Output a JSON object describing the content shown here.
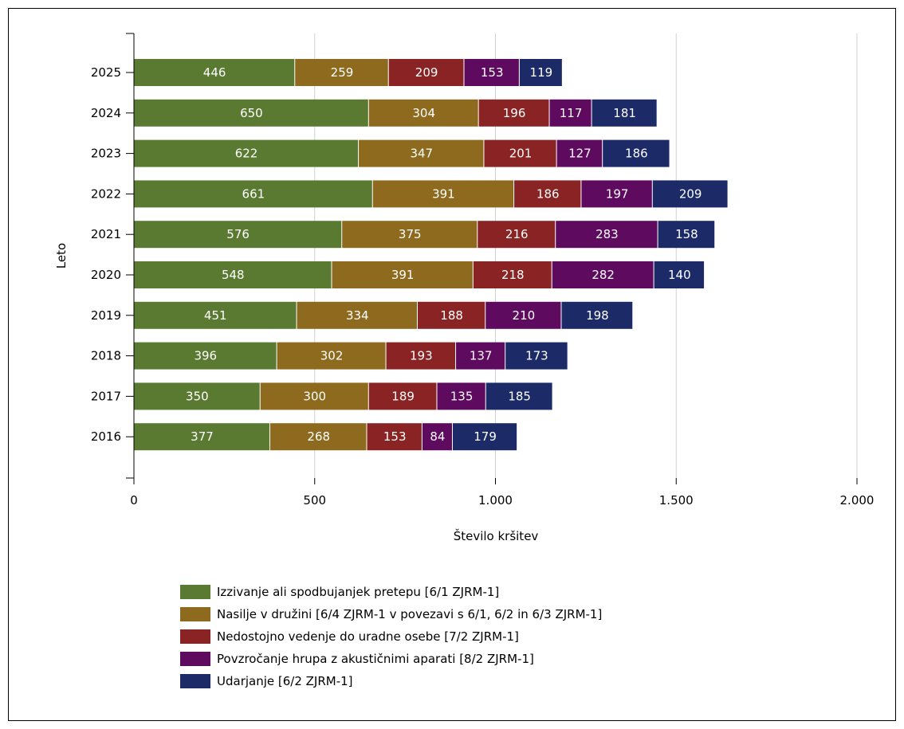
{
  "chart_data": {
    "type": "bar",
    "orientation": "horizontal",
    "stacked": true,
    "title": "",
    "xlabel": "Število kršitev",
    "ylabel": "Leto",
    "xlim": [
      0,
      2000
    ],
    "xticks": [
      0,
      500,
      1000,
      1500,
      2000
    ],
    "xtick_labels": [
      "0",
      "500",
      "1.000",
      "1.500",
      "2.000"
    ],
    "grid": "vertical",
    "legend_position": "bottom",
    "categories": [
      "2025",
      "2024",
      "2023",
      "2022",
      "2021",
      "2020",
      "2019",
      "2018",
      "2017",
      "2016"
    ],
    "series": [
      {
        "name": "Izzivanje ali spodbujanjek pretepu [6/1 ZJRM-1]",
        "color": "#5a7a32",
        "values": [
          446,
          650,
          622,
          661,
          576,
          548,
          451,
          396,
          350,
          377
        ]
      },
      {
        "name": "Nasilje v družini [6/4 ZJRM-1 v povezavi s 6/1, 6/2 in 6/3 ZJRM-1]",
        "color": "#8e6a1e",
        "values": [
          259,
          304,
          347,
          391,
          375,
          391,
          334,
          302,
          300,
          268
        ]
      },
      {
        "name": "Nedostojno vedenje do uradne osebe [7/2 ZJRM-1]",
        "color": "#8a2424",
        "values": [
          209,
          196,
          201,
          186,
          216,
          218,
          188,
          193,
          189,
          153
        ]
      },
      {
        "name": "Povzročanje hrupa z akustičnimi aparati [8/2 ZJRM-1]",
        "color": "#5e0a5e",
        "values": [
          153,
          117,
          127,
          197,
          283,
          282,
          210,
          137,
          135,
          84
        ]
      },
      {
        "name": "Udarjanje [6/2 ZJRM-1]",
        "color": "#1c2a68",
        "values": [
          119,
          181,
          186,
          209,
          158,
          140,
          198,
          173,
          185,
          179
        ]
      }
    ]
  }
}
